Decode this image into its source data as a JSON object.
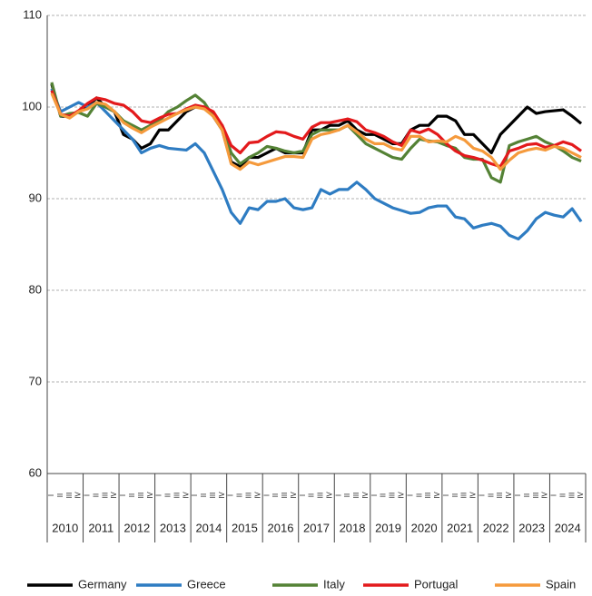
{
  "chart_data": {
    "type": "line",
    "categories": [
      "I",
      "II",
      "III",
      "IV",
      "I",
      "II",
      "III",
      "IV",
      "I",
      "II",
      "III",
      "IV",
      "I",
      "II",
      "III",
      "IV",
      "I",
      "II",
      "III",
      "IV",
      "I",
      "II",
      "III",
      "IV",
      "I",
      "II",
      "III",
      "IV",
      "I",
      "II",
      "III",
      "IV",
      "I",
      "II",
      "III",
      "IV",
      "I",
      "II",
      "III",
      "IV",
      "I",
      "II",
      "III",
      "IV",
      "I",
      "II",
      "III",
      "IV",
      "I",
      "II",
      "III",
      "IV",
      "I",
      "II",
      "III",
      "IV",
      "I",
      "II",
      "III",
      "IV"
    ],
    "category_groups": [
      "2010",
      "2011",
      "2012",
      "2013",
      "2014",
      "2015",
      "2016",
      "2017",
      "2018",
      "2019",
      "2020",
      "2021",
      "2022",
      "2023",
      "2024"
    ],
    "series": [
      {
        "name": "Germany",
        "color": "#000000",
        "values": [
          102.5,
          99,
          99,
          99.5,
          100,
          101,
          100,
          99.5,
          97,
          96.5,
          95.5,
          96,
          97.5,
          97.5,
          98.5,
          99.5,
          100,
          100,
          99,
          97.5,
          94,
          93.5,
          94.5,
          94.5,
          95,
          95.5,
          95,
          95,
          95,
          97.5,
          97.5,
          98,
          98,
          98.5,
          97.5,
          97,
          97,
          96.5,
          96,
          96,
          97.5,
          98,
          98,
          99,
          99,
          98.5,
          97,
          97,
          96,
          95,
          97,
          98,
          99,
          100,
          99.3,
          99.5,
          99.6,
          99.7,
          99,
          98.2
        ]
      },
      {
        "name": "Greece",
        "color": "#2e7cc2",
        "values": [
          102,
          99.5,
          100,
          100.5,
          100,
          100.5,
          99.5,
          98.5,
          97.5,
          96.5,
          95,
          95.5,
          95.8,
          95.5,
          95.4,
          95.3,
          96,
          95,
          93,
          91,
          88.5,
          87.3,
          89,
          88.8,
          89.7,
          89.7,
          90,
          89,
          88.8,
          89,
          91,
          90.5,
          91,
          91,
          91.8,
          91,
          90,
          89.5,
          89,
          88.7,
          88.4,
          88.5,
          89,
          89.2,
          89.2,
          88,
          87.8,
          86.8,
          87.1,
          87.3,
          87,
          86,
          85.6,
          86.5,
          87.8,
          88.5,
          88.2,
          88,
          88.9,
          87.5
        ]
      },
      {
        "name": "Italy",
        "color": "#548235",
        "values": [
          102.7,
          99,
          99.3,
          99.4,
          99,
          100.4,
          100,
          99.5,
          98.5,
          98,
          97.5,
          98,
          98.5,
          99.5,
          100,
          100.7,
          101.3,
          100.5,
          99,
          98,
          95,
          93.8,
          94.5,
          95,
          95.7,
          95.5,
          95.2,
          95,
          95.2,
          97,
          97.5,
          97.5,
          97.5,
          98,
          97,
          96,
          95.5,
          95,
          94.5,
          94.3,
          95.5,
          96.5,
          96.3,
          96.2,
          95.8,
          95.5,
          94.5,
          94.3,
          94.3,
          92.3,
          91.8,
          95.8,
          96.2,
          96.5,
          96.8,
          96.2,
          95.8,
          95.2,
          94.5,
          94.1
        ]
      },
      {
        "name": "Portugal",
        "color": "#e31a1c",
        "values": [
          101.8,
          99.2,
          99,
          99.6,
          100.4,
          101,
          100.8,
          100.4,
          100.2,
          99.5,
          98.5,
          98.3,
          98.8,
          99.2,
          99.3,
          99.8,
          100.2,
          100,
          99.5,
          98,
          95.8,
          95,
          96.1,
          96.2,
          96.8,
          97.3,
          97.2,
          96.8,
          96.5,
          97.8,
          98.3,
          98.3,
          98.5,
          98.7,
          98.4,
          97.5,
          97.2,
          96.8,
          96.2,
          95.8,
          97.5,
          97.2,
          97.6,
          97,
          96,
          95.2,
          94.7,
          94.5,
          94.2,
          93.8,
          93.5,
          95.2,
          95.5,
          95.9,
          96,
          95.6,
          95.8,
          96.2,
          95.9,
          95.2
        ]
      },
      {
        "name": "Spain",
        "color": "#f59a3c",
        "values": [
          101.5,
          99.2,
          98.8,
          99.5,
          99.8,
          100.5,
          100.3,
          99.5,
          98.3,
          97.7,
          97.2,
          97.8,
          98.3,
          98.8,
          99.3,
          99.7,
          100,
          99.8,
          99,
          97.5,
          93.8,
          93.2,
          94,
          93.7,
          94,
          94.3,
          94.6,
          94.6,
          94.5,
          96.5,
          97,
          97.2,
          97.5,
          98,
          97.3,
          96.5,
          96,
          96,
          95.5,
          95.3,
          96.8,
          96.8,
          96.2,
          96.3,
          96.2,
          96.8,
          96.4,
          95.5,
          95.2,
          94.5,
          93.2,
          94.2,
          95,
          95.3,
          95.5,
          95.3,
          95.7,
          95.5,
          95,
          94.5
        ]
      }
    ],
    "ylim": [
      60,
      110
    ],
    "yticks": [
      60,
      70,
      80,
      90,
      100,
      110
    ],
    "grid": true,
    "legend": "bottom"
  }
}
